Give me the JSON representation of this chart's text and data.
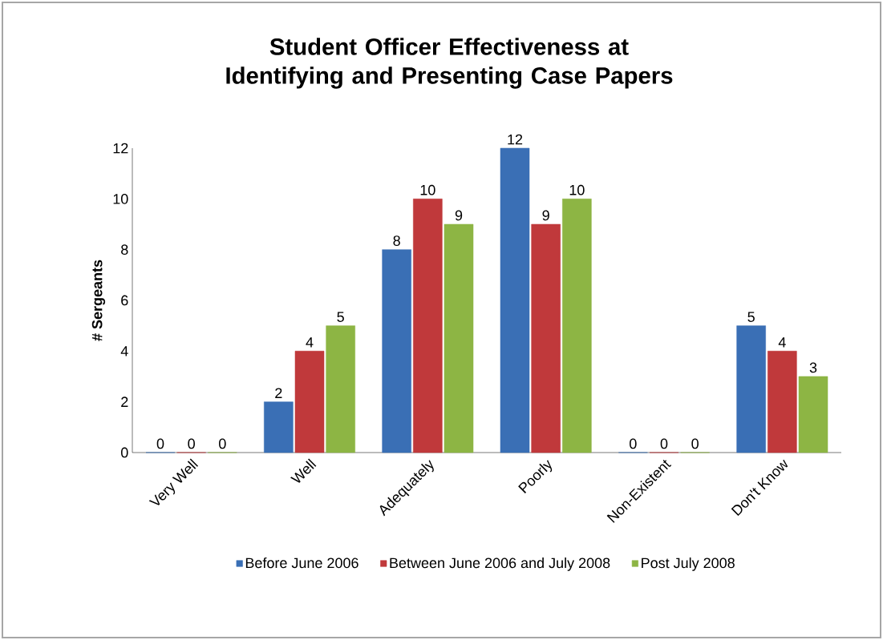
{
  "chart_data": {
    "type": "bar",
    "title": "Student Officer Effectiveness at Identifying and Presenting Case Papers",
    "ylabel": "# Sergeants",
    "categories": [
      "Very Well",
      "Well",
      "Adequately",
      "Poorly",
      "Non-Existent",
      "Don't Know"
    ],
    "series": [
      {
        "name": "Before June 2006",
        "color": "#3a6fb5",
        "values": [
          0,
          2,
          8,
          12,
          0,
          5
        ]
      },
      {
        "name": "Between June 2006 and July 2008",
        "color": "#c0393b",
        "values": [
          0,
          4,
          10,
          9,
          0,
          4
        ]
      },
      {
        "name": "Post July 2008",
        "color": "#8db544",
        "values": [
          0,
          5,
          9,
          10,
          0,
          3
        ]
      }
    ],
    "ylim": [
      0,
      12
    ],
    "yticks": [
      0,
      2,
      4,
      6,
      8,
      10,
      12
    ],
    "data_labels": true,
    "legend": "bottom"
  }
}
